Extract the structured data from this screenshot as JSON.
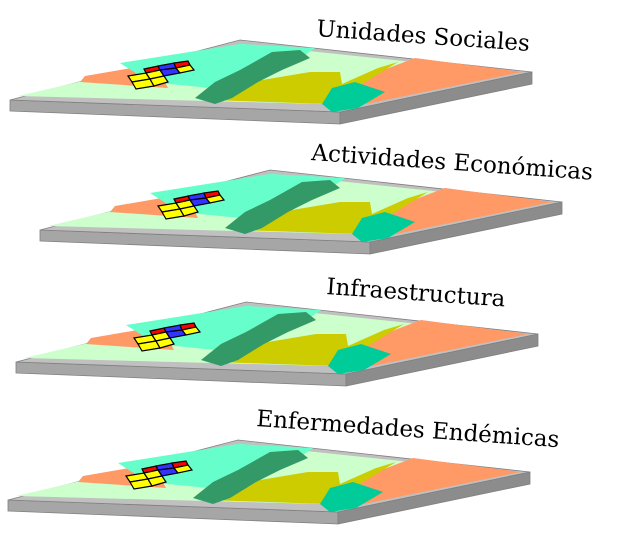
{
  "layers": [
    {
      "title": "Unidades Sociales"
    },
    {
      "title": "Actividades Económicas"
    },
    {
      "title": "Infraestructura"
    },
    {
      "title": "Enfermedades Endémicas"
    }
  ],
  "colors": {
    "light_green": "#ccffcc",
    "cyan": "#66ffcc",
    "aqua": "#00cc99",
    "olive": "#cccc00",
    "salmon": "#ff9966",
    "dark_green": "#339966",
    "slab_top": "#c0c0c0",
    "slab_side": "#a6a6a6",
    "slab_edge": "#808080",
    "cell_red": "#ff0000",
    "cell_blue": "#3333ff",
    "cell_yellow": "#ffff00",
    "cell_border": "#000000"
  },
  "icons": {
    "map_layer": "map-layer-icon",
    "grid_marker": "grid-cells-icon"
  }
}
